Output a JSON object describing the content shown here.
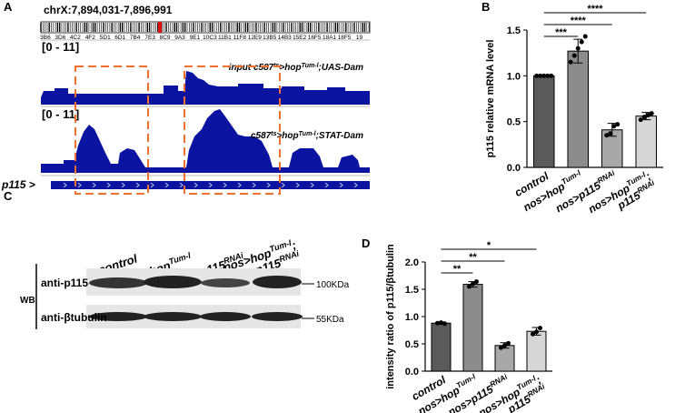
{
  "panels": {
    "a": "A",
    "b": "B",
    "c": "C",
    "d": "D"
  },
  "browser": {
    "locus": "chrX:7,894,031-7,896,991",
    "bands": [
      "3B6",
      "3D6",
      "4C2",
      "4F2",
      "5D1",
      "6D1",
      "7B4",
      "7E3",
      "8C9",
      "9A3",
      "9E1",
      "10C3",
      "11B1",
      "11F8",
      "12E9",
      "13B5",
      "14B3",
      "15E2",
      "16F5",
      "18A1",
      "18F5",
      "19"
    ],
    "tracks": [
      {
        "range": "[0 - 11]",
        "label": [
          "input  ",
          "c587",
          {
            "sup": "ts"
          },
          ">hop",
          {
            "sup": "Tum-l"
          },
          ";UAS-Dam"
        ]
      },
      {
        "range": "[0 - 11]",
        "label": [
          "c587",
          {
            "sup": "ts"
          },
          ">hop",
          {
            "sup": "Tum-l"
          },
          ";STAT-Dam"
        ]
      }
    ],
    "gene": "p115 >"
  },
  "blot": {
    "method": "WB",
    "columns": [
      [
        [
          "control"
        ]
      ],
      [
        [
          "nos>hop",
          {
            "sup": "Tum-l"
          }
        ]
      ],
      [
        [
          "nos>p115",
          {
            "sup": "RNAi"
          }
        ]
      ],
      [
        [
          "nos>hop",
          {
            "sup": "Tum-l"
          },
          ";"
        ],
        [
          "p115",
          {
            "sup": "RNAi"
          }
        ]
      ]
    ],
    "rows": [
      "anti-p115",
      "anti-βtubulin"
    ],
    "markers": [
      "100KDa",
      "55KDa"
    ]
  },
  "chart_data": [
    {
      "type": "bar",
      "ylabel": "p115 relative mRNA level",
      "categories": [
        [
          [
            "control"
          ]
        ],
        [
          [
            "nos>hop",
            {
              "sup": "Tum-l"
            }
          ]
        ],
        [
          [
            "nos>p115",
            {
              "sup": "RNAi"
            }
          ]
        ],
        [
          [
            "nos>hop",
            {
              "sup": "Tum-l"
            },
            ";"
          ],
          [
            "p115",
            {
              "sup": "RNAi"
            }
          ]
        ]
      ],
      "values": [
        1.0,
        1.27,
        0.41,
        0.56
      ],
      "errors": [
        0.0,
        0.13,
        0.07,
        0.04
      ],
      "points": [
        [
          1.0,
          1.0,
          1.0,
          1.0,
          1.0
        ],
        [
          1.15,
          1.22,
          1.3,
          1.37,
          1.43
        ],
        [
          0.35,
          0.37,
          0.45,
          0.47
        ],
        [
          0.52,
          0.55,
          0.57,
          0.59
        ]
      ],
      "colors": [
        "#5a5a5a",
        "#8c8c8c",
        "#a8a8a8",
        "#d6d6d6"
      ],
      "ylim": [
        0,
        1.5
      ],
      "yticks": [
        {
          "value": 0,
          "label": "0.0"
        },
        {
          "value": 0.5,
          "label": "0.5"
        },
        {
          "value": 1,
          "label": "1.0"
        },
        {
          "value": 1.5,
          "label": "1.5"
        }
      ],
      "significance": [
        "***",
        "****",
        "****"
      ]
    },
    {
      "type": "bar",
      "ylabel": "intensity ratio of p115/βtubulin",
      "categories": [
        [
          [
            "control"
          ]
        ],
        [
          [
            "nos>hop",
            {
              "sup": "Tum-l"
            }
          ]
        ],
        [
          [
            "nos>p115",
            {
              "sup": "RNAi"
            }
          ]
        ],
        [
          [
            "nos>hop",
            {
              "sup": "Tum-l"
            },
            ";"
          ],
          [
            "p115",
            {
              "sup": "RNAi"
            }
          ]
        ]
      ],
      "values": [
        0.88,
        1.59,
        0.47,
        0.73
      ],
      "errors": [
        0.02,
        0.05,
        0.05,
        0.07
      ],
      "points": [
        [
          0.88,
          0.89,
          0.87
        ],
        [
          1.55,
          1.6,
          1.64
        ],
        [
          0.43,
          0.47,
          0.51
        ],
        [
          0.68,
          0.72,
          0.79
        ]
      ],
      "colors": [
        "#5a5a5a",
        "#8c8c8c",
        "#a8a8a8",
        "#d6d6d6"
      ],
      "ylim": [
        0,
        2
      ],
      "yticks": [
        {
          "value": 0,
          "label": "0.0"
        },
        {
          "value": 0.5,
          "label": "0.5"
        },
        {
          "value": 1,
          "label": "1.0"
        },
        {
          "value": 1.5,
          "label": "1.5"
        },
        {
          "value": 2,
          "label": "2.0"
        }
      ],
      "significance": [
        "**",
        "**",
        "*"
      ]
    }
  ]
}
